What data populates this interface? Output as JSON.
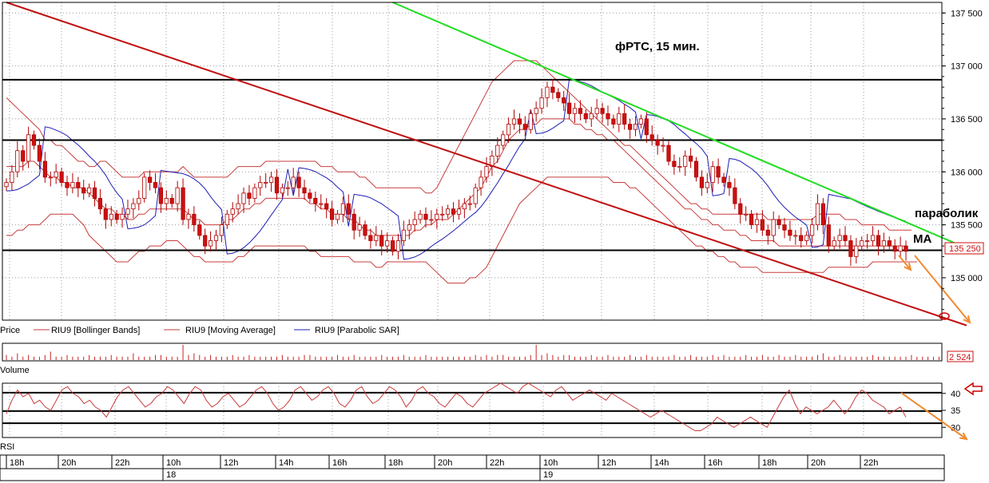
{
  "colors": {
    "background": "#ffffff",
    "grid": "#9a9a9a",
    "frame": "#000000",
    "candle_up": "#ffffff",
    "candle_down": "#cc1111",
    "candle_outline": "#b00000",
    "bollinger": "#c83c3c",
    "moving_average": "#c83c3c",
    "parabolic_sar": "#1e1eb4",
    "trend_red": "#c01010",
    "trend_green": "#22dd22",
    "level_line": "#000000",
    "annotation_arrow": "#f08a30",
    "marker": "#cc0000",
    "volume": "#cc2222",
    "rsi": "#c83c3c"
  },
  "chart_data": [
    {
      "type": "candlestick",
      "title": "фРТС,  15 мин.",
      "ylim": [
        134600,
        137600
      ],
      "y_ticks": [
        135000,
        135500,
        136000,
        136500,
        137000,
        137500
      ],
      "y_tick_labels": [
        "135 000",
        "135 500",
        "136 000",
        "136 500",
        "137 000",
        "137 500"
      ],
      "last_price": 135250,
      "last_price_label": "135 250",
      "horizontal_levels": [
        136870,
        136300,
        135260
      ],
      "legend": [
        {
          "name": "Price",
          "color": "#000000"
        },
        {
          "name": "RIU9 [Bollinger Bands]",
          "color": "#c83c3c"
        },
        {
          "name": "RIU9 [Moving Average]",
          "color": "#c83c3c"
        },
        {
          "name": "RIU9 [Parabolic SAR]",
          "color": "#1e1eb4"
        }
      ],
      "annotations": [
        "параболик",
        "МА"
      ],
      "trend_lines": [
        {
          "color": "red",
          "from": {
            "bar": 0,
            "value": 137600
          },
          "to": {
            "bar": 174,
            "value": 134550
          }
        },
        {
          "color": "green",
          "from": {
            "bar": 70,
            "value": 137600
          },
          "to": {
            "bar": 174,
            "value": 135280
          }
        }
      ],
      "close": [
        135900,
        136000,
        136200,
        136100,
        136350,
        136250,
        136100,
        135950,
        135950,
        136000,
        135900,
        135850,
        135900,
        135850,
        135800,
        135850,
        135750,
        135650,
        135550,
        135600,
        135550,
        135600,
        135650,
        135700,
        135750,
        135950,
        135900,
        135850,
        135700,
        135750,
        135700,
        135850,
        135550,
        135600,
        135500,
        135400,
        135300,
        135350,
        135400,
        135500,
        135600,
        135650,
        135700,
        135800,
        135750,
        135850,
        135900,
        135900,
        135950,
        135800,
        135850,
        135850,
        135950,
        135850,
        135800,
        135750,
        135700,
        135700,
        135650,
        135550,
        135600,
        135700,
        135600,
        135450,
        135500,
        135400,
        135350,
        135400,
        135300,
        135350,
        135250,
        135350,
        135450,
        135500,
        135550,
        135600,
        135550,
        135550,
        135600,
        135600,
        135650,
        135600,
        135650,
        135700,
        135700,
        135850,
        135950,
        136050,
        136150,
        136250,
        136350,
        136450,
        136500,
        136450,
        136400,
        136550,
        136600,
        136700,
        136800,
        136750,
        136700,
        136650,
        136550,
        136600,
        136550,
        136500,
        136550,
        136600,
        136550,
        136500,
        136450,
        136550,
        136450,
        136400,
        136450,
        136500,
        136350,
        136300,
        136250,
        136250,
        136100,
        136050,
        136050,
        136150,
        136100,
        135950,
        135850,
        135900,
        136050,
        135950,
        135900,
        135850,
        135700,
        135600,
        135600,
        135500,
        135550,
        135450,
        135400,
        135550,
        135500,
        135450,
        135400,
        135400,
        135350,
        135400,
        135500,
        135700,
        135500,
        135300,
        135350,
        135400,
        135350,
        135200,
        135300,
        135350,
        135350,
        135400,
        135300,
        135350,
        135300,
        135250,
        135300,
        135250
      ],
      "bollinger_upper": [
        136700,
        136650,
        136600,
        136550,
        136500,
        136450,
        136400,
        136300,
        136300,
        136250,
        136250,
        136200,
        136150,
        136100,
        136100,
        136050,
        136050,
        136100,
        136100,
        136050,
        136000,
        135950,
        135950,
        135950,
        135950,
        136000,
        136000,
        136000,
        136000,
        136000,
        136000,
        136000,
        136050,
        136000,
        135950,
        135950,
        135950,
        135950,
        135950,
        135950,
        135950,
        136000,
        136050,
        136050,
        136050,
        136050,
        136050,
        136100,
        136100,
        136100,
        136100,
        136100,
        136100,
        136100,
        136100,
        136100,
        136100,
        136050,
        136050,
        136050,
        136000,
        136000,
        136000,
        136000,
        135950,
        135950,
        135900,
        135850,
        135850,
        135850,
        135850,
        135850,
        135850,
        135850,
        135850,
        135850,
        135800,
        135800,
        135850,
        135950,
        136050,
        136150,
        136250,
        136350,
        136450,
        136550,
        136650,
        136750,
        136850,
        136900,
        136950,
        137000,
        137050,
        137050,
        137050,
        137050,
        137050,
        137000,
        136950,
        136900,
        136850,
        136800,
        136750,
        136700,
        136650,
        136600,
        136550,
        136500,
        136450,
        136400,
        136350,
        136300,
        136250,
        136250,
        136200,
        136150,
        136100,
        136050,
        136000,
        135950,
        135900,
        135850,
        135800,
        135750,
        135700,
        135700,
        135650,
        135650,
        135600,
        135600,
        135600,
        135600,
        135600,
        135600,
        135600,
        135600,
        135600,
        135600,
        135550,
        135550,
        135550,
        135550,
        135550,
        135550,
        135550,
        135550,
        135550,
        135600,
        135600,
        135600,
        135600,
        135600,
        135550,
        135550,
        135550,
        135500,
        135500,
        135500,
        135500,
        135500,
        135450,
        135450,
        135450,
        135450,
        135450
      ],
      "bollinger_lower": [
        135400,
        135400,
        135450,
        135450,
        135500,
        135500,
        135500,
        135550,
        135600,
        135600,
        135600,
        135600,
        135600,
        135550,
        135500,
        135400,
        135350,
        135300,
        135250,
        135200,
        135150,
        135150,
        135150,
        135200,
        135250,
        135250,
        135300,
        135300,
        135300,
        135350,
        135350,
        135350,
        135300,
        135250,
        135200,
        135200,
        135150,
        135150,
        135150,
        135150,
        135150,
        135150,
        135200,
        135200,
        135250,
        135300,
        135300,
        135300,
        135300,
        135300,
        135300,
        135300,
        135300,
        135300,
        135300,
        135250,
        135250,
        135200,
        135200,
        135200,
        135200,
        135200,
        135200,
        135150,
        135150,
        135150,
        135150,
        135100,
        135100,
        135150,
        135150,
        135150,
        135150,
        135150,
        135150,
        135150,
        135150,
        135100,
        135050,
        135000,
        134950,
        134950,
        134950,
        134950,
        135000,
        135000,
        135050,
        135100,
        135200,
        135300,
        135400,
        135500,
        135600,
        135700,
        135750,
        135800,
        135850,
        135900,
        135950,
        135950,
        135950,
        135950,
        135950,
        135950,
        135950,
        135950,
        135950,
        135950,
        135950,
        135950,
        135900,
        135900,
        135900,
        135850,
        135850,
        135800,
        135750,
        135700,
        135650,
        135600,
        135550,
        135500,
        135450,
        135400,
        135350,
        135300,
        135300,
        135250,
        135250,
        135200,
        135200,
        135150,
        135150,
        135100,
        135100,
        135100,
        135100,
        135050,
        135050,
        135050,
        135050,
        135050,
        135050,
        135050,
        135050,
        135050,
        135050,
        135050,
        135050,
        135100,
        135100,
        135100,
        135100,
        135100,
        135100,
        135100,
        135100,
        135150,
        135150,
        135150,
        135150,
        135150,
        135150,
        135150,
        135150,
        135150
      ],
      "moving_average": [
        136050,
        136050,
        136050,
        136050,
        136100,
        136100,
        136050,
        136000,
        135950,
        135950,
        135900,
        135900,
        135850,
        135850,
        135850,
        135800,
        135750,
        135700,
        135650,
        135650,
        135600,
        135600,
        135550,
        135550,
        135600,
        135600,
        135650,
        135650,
        135650,
        135650,
        135650,
        135650,
        135650,
        135600,
        135550,
        135550,
        135500,
        135500,
        135500,
        135500,
        135550,
        135550,
        135600,
        135650,
        135650,
        135700,
        135700,
        135750,
        135750,
        135750,
        135750,
        135750,
        135750,
        135750,
        135750,
        135700,
        135700,
        135650,
        135650,
        135600,
        135600,
        135600,
        135550,
        135550,
        135500,
        135450,
        135450,
        135400,
        135400,
        135400,
        135400,
        135400,
        135400,
        135400,
        135450,
        135450,
        135500,
        135500,
        135550,
        135550,
        135550,
        135600,
        135650,
        135700,
        135750,
        135800,
        135850,
        135950,
        136050,
        136100,
        136200,
        136300,
        136350,
        136400,
        136400,
        136450,
        136450,
        136500,
        136500,
        136500,
        136500,
        136500,
        136500,
        136450,
        136450,
        136400,
        136400,
        136350,
        136350,
        136300,
        136300,
        136250,
        136200,
        136150,
        136100,
        136050,
        136000,
        135950,
        135900,
        135850,
        135800,
        135750,
        135700,
        135650,
        135650,
        135600,
        135550,
        135550,
        135500,
        135500,
        135450,
        135450,
        135450,
        135400,
        135400,
        135350,
        135350,
        135350,
        135350,
        135350,
        135300,
        135300,
        135300,
        135300,
        135300,
        135300,
        135300,
        135300,
        135300,
        135300,
        135300,
        135300,
        135300,
        135300,
        135300,
        135300,
        135300,
        135300,
        135300,
        135300,
        135300,
        135300,
        135300,
        135300
      ]
    },
    {
      "type": "bar",
      "title": "Volume",
      "last_value": 2524,
      "last_value_label": "2 524",
      "values": [
        3,
        2,
        4,
        2,
        3,
        2,
        2,
        3,
        5,
        2,
        2,
        3,
        2,
        2,
        2,
        3,
        2,
        2,
        2,
        3,
        2,
        2,
        2,
        4,
        2,
        2,
        2,
        3,
        3,
        2,
        2,
        2,
        9,
        3,
        4,
        3,
        2,
        3,
        2,
        2,
        2,
        3,
        2,
        2,
        3,
        2,
        2,
        2,
        2,
        2,
        3,
        2,
        2,
        2,
        3,
        3,
        2,
        2,
        2,
        2,
        3,
        2,
        2,
        3,
        2,
        2,
        2,
        2,
        3,
        2,
        2,
        2,
        3,
        2,
        2,
        2,
        3,
        2,
        2,
        2,
        2,
        2,
        2,
        2,
        2,
        3,
        2,
        3,
        2,
        3,
        3,
        2,
        2,
        2,
        2,
        3,
        9,
        3,
        4,
        3,
        2,
        3,
        3,
        2,
        2,
        2,
        3,
        2,
        2,
        3,
        2,
        2,
        2,
        3,
        2,
        2,
        3,
        2,
        2,
        2,
        2,
        3,
        2,
        2,
        3,
        2,
        2,
        2,
        3,
        2,
        3,
        2,
        2,
        2,
        3,
        2,
        2,
        3,
        2,
        2,
        3,
        2,
        2,
        3,
        2,
        2,
        2,
        3,
        4,
        2,
        2,
        3,
        2,
        2,
        2,
        2,
        2,
        3,
        2,
        2,
        2,
        2,
        2,
        2,
        3,
        2,
        2,
        2,
        2,
        2
      ]
    },
    {
      "type": "line",
      "title": "RSI",
      "ylim": [
        27,
        43
      ],
      "y_ticks": [
        30,
        35,
        40
      ],
      "y_tick_labels": [
        "30",
        "35",
        "40"
      ],
      "reference_levels": [
        40.2,
        34.8,
        31.2
      ],
      "values": [
        34,
        38,
        41,
        39,
        40,
        37,
        38,
        36,
        35,
        38,
        41,
        42,
        40,
        39,
        37,
        38,
        36,
        35,
        33,
        36,
        39,
        41,
        42,
        40,
        38,
        36,
        37,
        39,
        40,
        42,
        41,
        39,
        37,
        40,
        42,
        41,
        38,
        36,
        37,
        39,
        40,
        38,
        36,
        37,
        39,
        41,
        42,
        40,
        37,
        35,
        36,
        38,
        41,
        42,
        40,
        38,
        39,
        41,
        42,
        40,
        37,
        36,
        38,
        41,
        42,
        39,
        37,
        38,
        40,
        42,
        41,
        39,
        36,
        38,
        41,
        42,
        40,
        39,
        37,
        36,
        38,
        40,
        39,
        37,
        36,
        38,
        40,
        41,
        42,
        43,
        42,
        41,
        40,
        42,
        43,
        42,
        41,
        40,
        39,
        41,
        42,
        40,
        38,
        39,
        40,
        41,
        40,
        39,
        38,
        40,
        39,
        38,
        37,
        36,
        35,
        34,
        33,
        34,
        35,
        34,
        33,
        32,
        31,
        30,
        29,
        29,
        30,
        31,
        33,
        32,
        31,
        30,
        31,
        32,
        33,
        32,
        31,
        30,
        33,
        36,
        39,
        41,
        37,
        34,
        36,
        35,
        34,
        35,
        36,
        38,
        36,
        34,
        36,
        39,
        41,
        40,
        38,
        37,
        36,
        34,
        35,
        36,
        33
      ]
    }
  ],
  "x_axis": {
    "hour_labels": [
      "18h",
      "20h",
      "22h",
      "10h",
      "12h",
      "14h",
      "16h",
      "18h",
      "20h",
      "22h",
      "10h",
      "12h",
      "14h",
      "16h",
      "18h",
      "20h",
      "22h"
    ],
    "day_labels": [
      "18",
      "19"
    ]
  }
}
